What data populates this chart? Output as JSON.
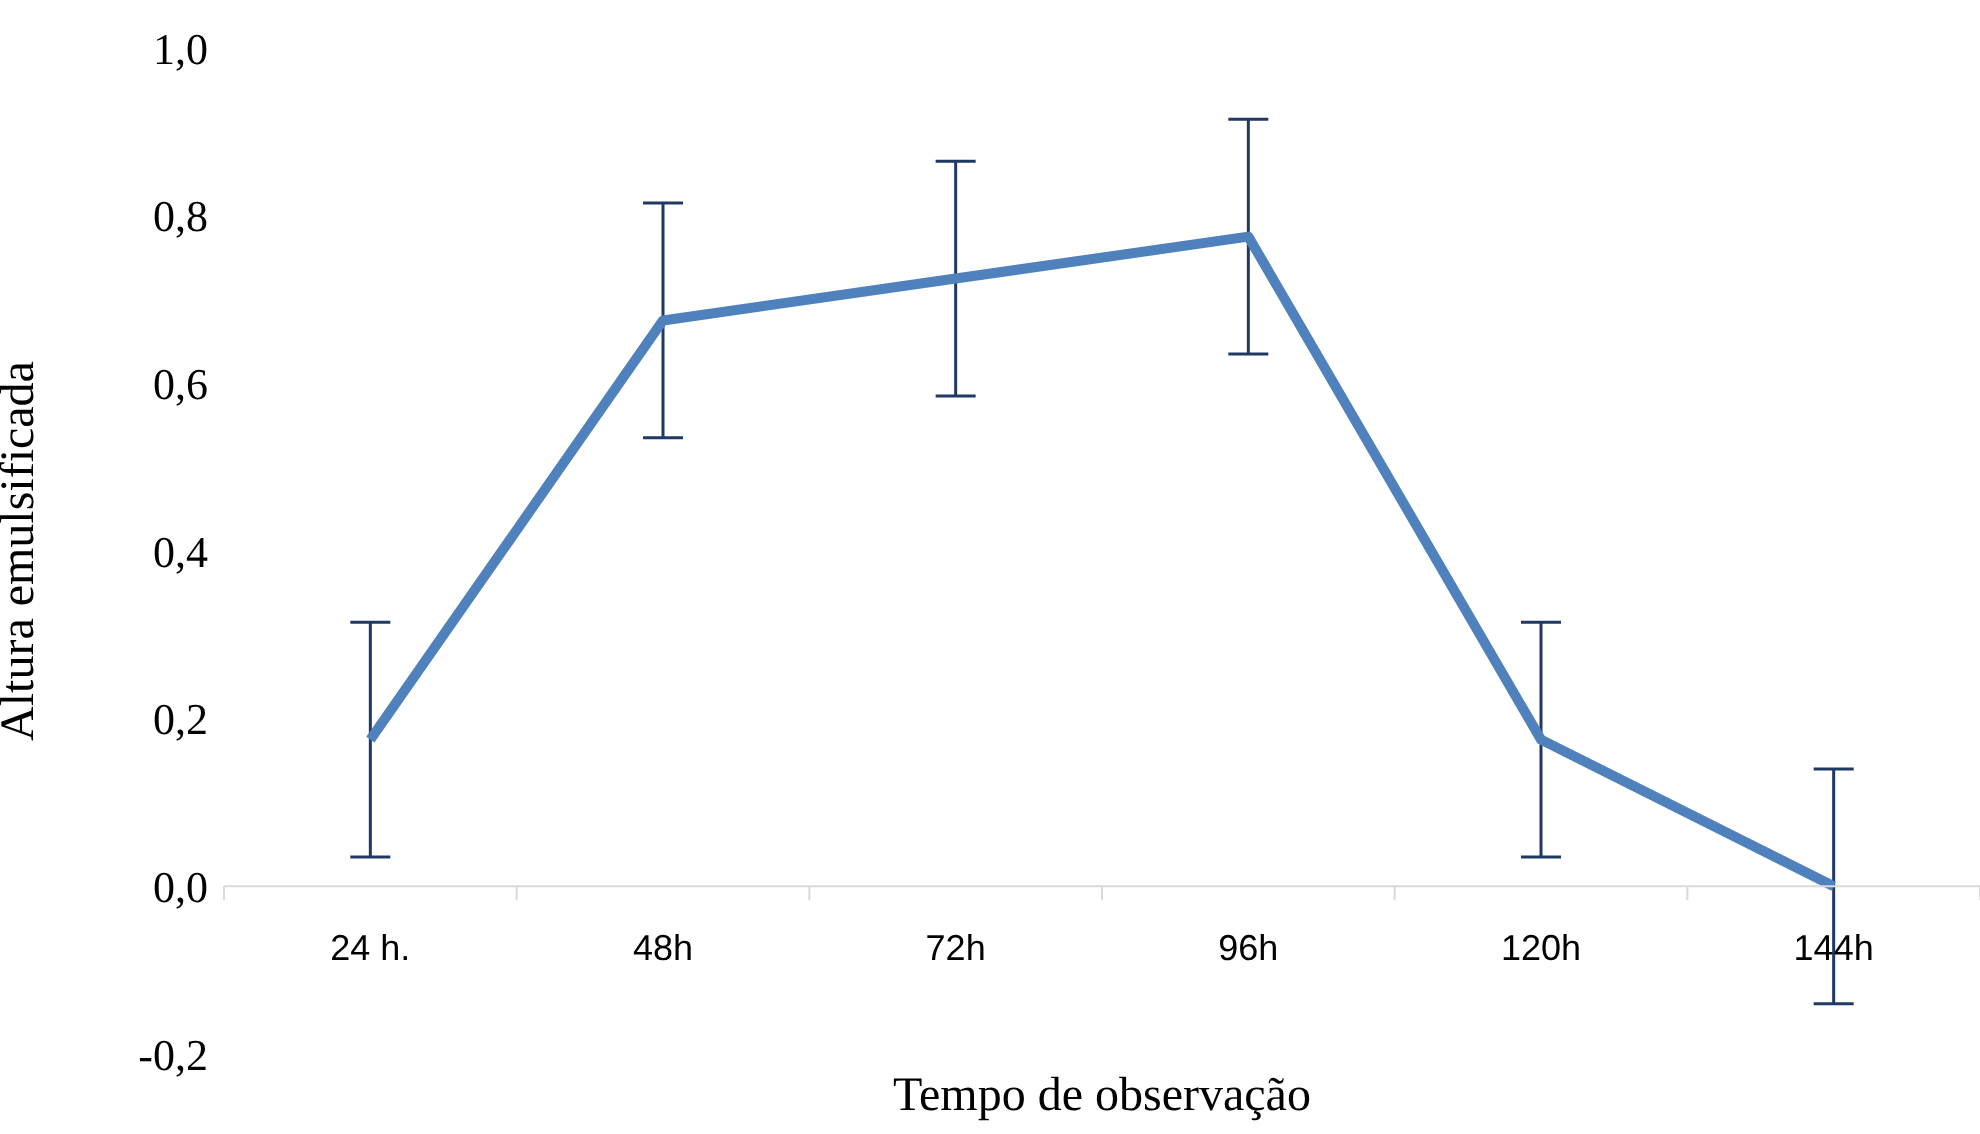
{
  "chart_data": {
    "type": "line",
    "xlabel": "Tempo de observação",
    "ylabel": "Altura emulsificada",
    "categories": [
      "24 h.",
      "48h",
      "72h",
      "96h",
      "120h",
      "144h"
    ],
    "series": [
      {
        "color": "#4f81bd",
        "values": [
          0.175,
          0.675,
          0.725,
          0.775,
          0.175,
          0.0
        ],
        "errors": [
          0.14,
          0.14,
          0.14,
          0.14,
          0.14,
          0.14
        ]
      }
    ],
    "ylim": [
      -0.2,
      1.0
    ],
    "yticks": [
      {
        "value": -0.2,
        "label": "-0,2"
      },
      {
        "value": 0,
        "label": "0,0"
      },
      {
        "value": 0.2,
        "label": "0,2"
      },
      {
        "value": 0.4,
        "label": "0,4"
      },
      {
        "value": 0.6,
        "label": "0,6"
      },
      {
        "value": 0.8,
        "label": "0,8"
      },
      {
        "value": 1.0,
        "label": "1,0"
      }
    ],
    "grid": false,
    "legend": false,
    "marker": "none",
    "line_style": "solid"
  }
}
